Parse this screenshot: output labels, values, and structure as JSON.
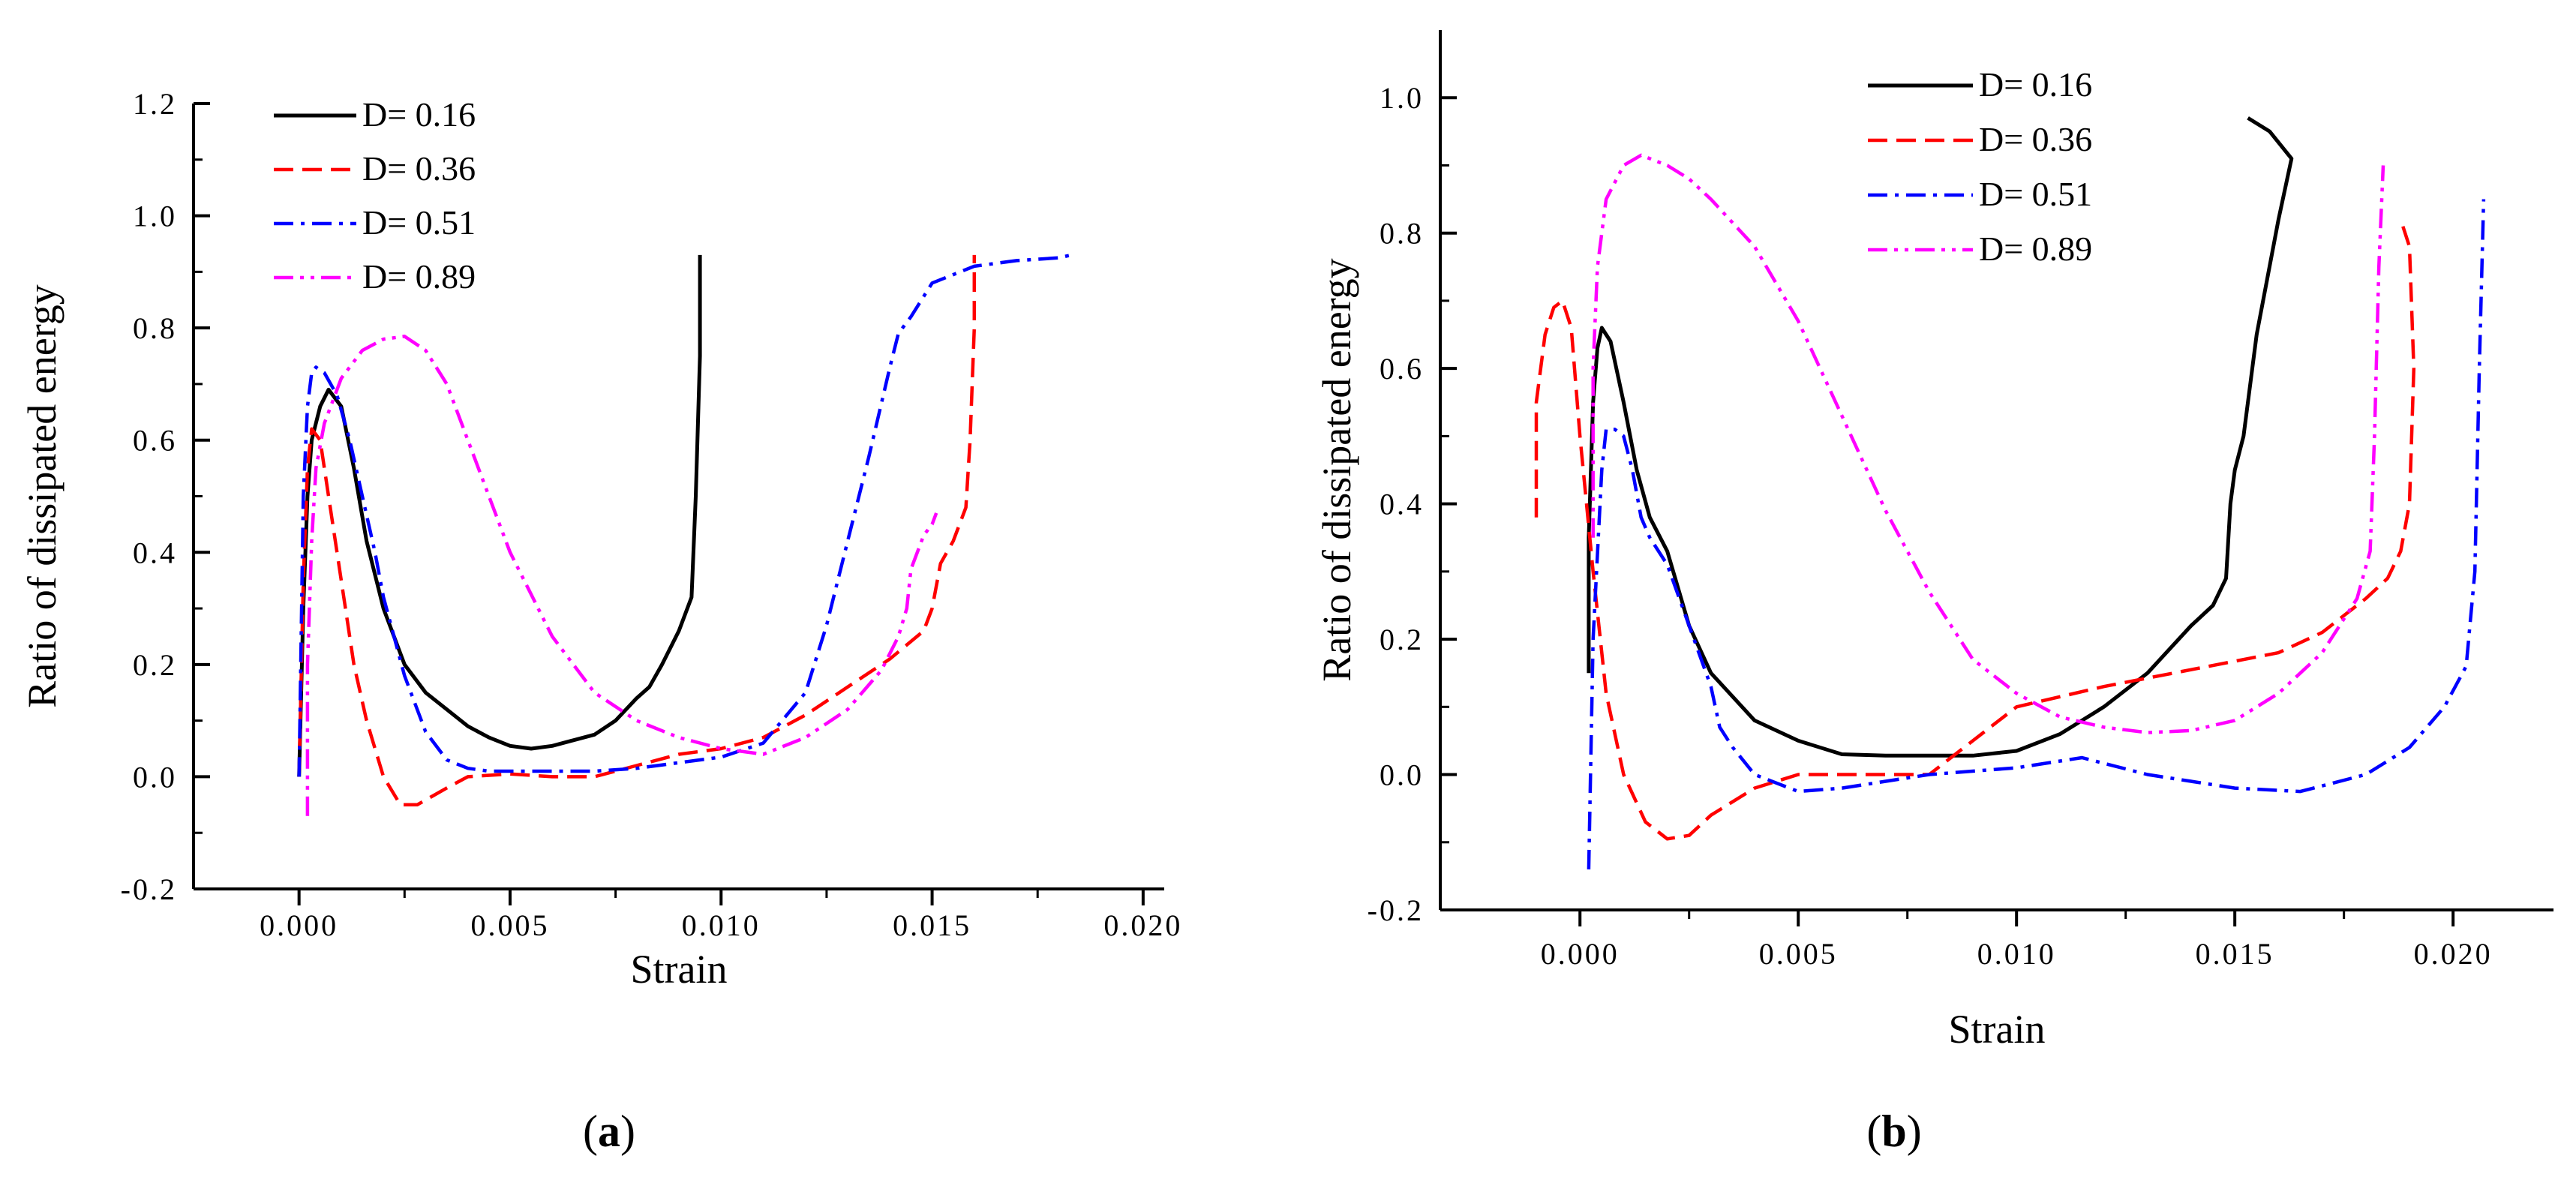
{
  "chart_data": [
    {
      "type": "line",
      "panel_label": "a",
      "xlabel": "Strain",
      "ylabel": "Ratio of dissipated energy",
      "xlim": [
        -0.0025,
        0.0205
      ],
      "ylim": [
        -0.2,
        1.2
      ],
      "xticks": [
        0.0,
        0.005,
        0.01,
        0.015,
        0.02
      ],
      "xtick_labels": [
        "0.000",
        "0.005",
        "0.010",
        "0.015",
        "0.020"
      ],
      "yticks": [
        -0.2,
        0.0,
        0.2,
        0.4,
        0.6,
        0.8,
        1.0,
        1.2
      ],
      "ytick_labels": [
        "-0.2",
        "0.0",
        "0.2",
        "0.4",
        "0.6",
        "0.8",
        "1.0",
        "1.2"
      ],
      "grid": false,
      "legend_position": "top-left",
      "series": [
        {
          "name": "D= 0.16",
          "color": "#000000",
          "dash": "solid",
          "x": [
            0.0,
            0.0001,
            0.0002,
            0.0003,
            0.0005,
            0.0007,
            0.001,
            0.0013,
            0.0016,
            0.002,
            0.0025,
            0.003,
            0.0035,
            0.004,
            0.0045,
            0.005,
            0.0055,
            0.006,
            0.0065,
            0.007,
            0.0075,
            0.008,
            0.0083,
            0.0086,
            0.009,
            0.0093,
            0.0094,
            0.0095,
            0.0095
          ],
          "y": [
            0.0,
            0.3,
            0.5,
            0.6,
            0.66,
            0.69,
            0.66,
            0.55,
            0.42,
            0.3,
            0.2,
            0.15,
            0.12,
            0.09,
            0.07,
            0.055,
            0.05,
            0.055,
            0.065,
            0.075,
            0.1,
            0.14,
            0.16,
            0.2,
            0.26,
            0.32,
            0.5,
            0.75,
            0.93
          ]
        },
        {
          "name": "D= 0.36",
          "color": "#ff0000",
          "dash": "dashed",
          "x": [
            0.0,
            0.0001,
            0.0002,
            0.0003,
            0.0005,
            0.0007,
            0.001,
            0.0013,
            0.0016,
            0.002,
            0.0024,
            0.0028,
            0.0035,
            0.004,
            0.005,
            0.006,
            0.007,
            0.008,
            0.009,
            0.01,
            0.011,
            0.012,
            0.013,
            0.014,
            0.0148,
            0.015,
            0.0152,
            0.0155,
            0.0158,
            0.0159,
            0.016,
            0.016
          ],
          "y": [
            0.0,
            0.35,
            0.55,
            0.62,
            0.6,
            0.5,
            0.35,
            0.2,
            0.1,
            0.0,
            -0.05,
            -0.05,
            -0.02,
            0.0,
            0.005,
            0.0,
            0.0,
            0.02,
            0.04,
            0.05,
            0.07,
            0.11,
            0.16,
            0.21,
            0.26,
            0.3,
            0.38,
            0.42,
            0.48,
            0.6,
            0.8,
            0.93
          ]
        },
        {
          "name": "D= 0.51",
          "color": "#0000ff",
          "dash": "dashdot",
          "x": [
            0.0,
            0.0001,
            0.0002,
            0.0003,
            0.0004,
            0.0006,
            0.0009,
            0.0012,
            0.0015,
            0.0018,
            0.002,
            0.0025,
            0.003,
            0.0035,
            0.004,
            0.0045,
            0.005,
            0.006,
            0.007,
            0.008,
            0.009,
            0.01,
            0.011,
            0.012,
            0.0125,
            0.013,
            0.0135,
            0.014,
            0.0142,
            0.0145,
            0.015,
            0.016,
            0.017,
            0.018,
            0.0183
          ],
          "y": [
            0.0,
            0.5,
            0.66,
            0.72,
            0.73,
            0.72,
            0.68,
            0.6,
            0.5,
            0.4,
            0.32,
            0.18,
            0.08,
            0.03,
            0.015,
            0.01,
            0.01,
            0.01,
            0.01,
            0.015,
            0.025,
            0.035,
            0.06,
            0.15,
            0.27,
            0.42,
            0.57,
            0.73,
            0.79,
            0.82,
            0.88,
            0.91,
            0.92,
            0.925,
            0.93
          ]
        },
        {
          "name": "D= 0.89",
          "color": "#ff00ff",
          "dash": "dashdotdot",
          "x": [
            0.0002,
            0.0002,
            0.0003,
            0.0004,
            0.0006,
            0.001,
            0.0015,
            0.002,
            0.0025,
            0.003,
            0.0035,
            0.004,
            0.0045,
            0.005,
            0.006,
            0.007,
            0.008,
            0.009,
            0.01,
            0.011,
            0.012,
            0.013,
            0.0138,
            0.0142,
            0.0144,
            0.0145,
            0.0148,
            0.015,
            0.0151
          ],
          "y": [
            -0.07,
            0.2,
            0.42,
            0.55,
            0.63,
            0.71,
            0.76,
            0.78,
            0.785,
            0.76,
            0.7,
            0.6,
            0.5,
            0.4,
            0.25,
            0.15,
            0.1,
            0.07,
            0.05,
            0.04,
            0.07,
            0.12,
            0.19,
            0.25,
            0.3,
            0.37,
            0.43,
            0.45,
            0.47
          ]
        }
      ]
    },
    {
      "type": "line",
      "panel_label": "b",
      "xlabel": "Strain",
      "ylabel": "Ratio of dissipated energy",
      "xlim": [
        -0.0032,
        0.0223
      ],
      "ylim": [
        -0.2,
        1.1
      ],
      "xticks": [
        0.0,
        0.005,
        0.01,
        0.015,
        0.02
      ],
      "xtick_labels": [
        "0.000",
        "0.005",
        "0.010",
        "0.015",
        "0.020"
      ],
      "yticks": [
        -0.2,
        0.0,
        0.2,
        0.4,
        0.6,
        0.8,
        1.0
      ],
      "ytick_labels": [
        "-0.2",
        "0.0",
        "0.2",
        "0.4",
        "0.6",
        "0.8",
        "1.0"
      ],
      "grid": false,
      "legend_position": "top-center",
      "series": [
        {
          "name": "D= 0.16",
          "color": "#000000",
          "dash": "solid",
          "x": [
            0.0002,
            0.0002,
            0.0003,
            0.0004,
            0.0005,
            0.0007,
            0.001,
            0.0013,
            0.0016,
            0.002,
            0.0025,
            0.003,
            0.004,
            0.005,
            0.006,
            0.007,
            0.008,
            0.009,
            0.01,
            0.011,
            0.012,
            0.013,
            0.014,
            0.0145,
            0.0148,
            0.0149,
            0.015,
            0.0152,
            0.0155,
            0.016,
            0.0163,
            0.0158,
            0.0153
          ],
          "y": [
            0.15,
            0.35,
            0.55,
            0.63,
            0.66,
            0.64,
            0.55,
            0.45,
            0.38,
            0.33,
            0.22,
            0.15,
            0.08,
            0.05,
            0.03,
            0.028,
            0.028,
            0.028,
            0.035,
            0.06,
            0.1,
            0.15,
            0.22,
            0.25,
            0.29,
            0.4,
            0.45,
            0.5,
            0.65,
            0.82,
            0.91,
            0.95,
            0.97
          ]
        },
        {
          "name": "D= 0.36",
          "color": "#ff0000",
          "dash": "dashed",
          "x": [
            -0.001,
            -0.001,
            -0.0008,
            -0.0006,
            -0.0004,
            -0.0002,
            0.0,
            0.0003,
            0.0006,
            0.001,
            0.0015,
            0.002,
            0.0025,
            0.003,
            0.004,
            0.005,
            0.006,
            0.008,
            0.01,
            0.012,
            0.014,
            0.016,
            0.017,
            0.018,
            0.0185,
            0.0188,
            0.019,
            0.0191,
            0.019,
            0.0188
          ],
          "y": [
            0.38,
            0.55,
            0.65,
            0.69,
            0.7,
            0.66,
            0.5,
            0.3,
            0.12,
            0.0,
            -0.07,
            -0.095,
            -0.09,
            -0.06,
            -0.02,
            0.0,
            0.0,
            0.0,
            0.1,
            0.13,
            0.155,
            0.18,
            0.21,
            0.26,
            0.29,
            0.33,
            0.4,
            0.6,
            0.78,
            0.82
          ]
        },
        {
          "name": "D= 0.51",
          "color": "#0000ff",
          "dash": "dashdot",
          "x": [
            0.0002,
            0.0003,
            0.0005,
            0.0006,
            0.0008,
            0.001,
            0.0012,
            0.0014,
            0.0016,
            0.002,
            0.0025,
            0.003,
            0.0032,
            0.0035,
            0.004,
            0.005,
            0.006,
            0.008,
            0.01,
            0.0115,
            0.013,
            0.015,
            0.0165,
            0.018,
            0.019,
            0.0198,
            0.0203,
            0.0205,
            0.0206,
            0.0207
          ],
          "y": [
            -0.14,
            0.2,
            0.45,
            0.51,
            0.51,
            0.5,
            0.45,
            0.38,
            0.35,
            0.31,
            0.22,
            0.13,
            0.07,
            0.04,
            0.0,
            -0.025,
            -0.02,
            0.0,
            0.01,
            0.025,
            0.0,
            -0.02,
            -0.025,
            0.0,
            0.04,
            0.1,
            0.16,
            0.3,
            0.6,
            0.85
          ]
        },
        {
          "name": "D= 0.89",
          "color": "#ff00ff",
          "dash": "dashdotdot",
          "x": [
            0.0003,
            0.0003,
            0.0004,
            0.0006,
            0.001,
            0.0014,
            0.002,
            0.0025,
            0.003,
            0.004,
            0.005,
            0.006,
            0.007,
            0.008,
            0.009,
            0.01,
            0.011,
            0.012,
            0.013,
            0.014,
            0.015,
            0.016,
            0.017,
            0.0178,
            0.0181,
            0.0182,
            0.0183,
            0.0184
          ],
          "y": [
            0.35,
            0.6,
            0.75,
            0.85,
            0.9,
            0.915,
            0.9,
            0.88,
            0.85,
            0.78,
            0.67,
            0.53,
            0.39,
            0.27,
            0.17,
            0.12,
            0.085,
            0.07,
            0.062,
            0.065,
            0.08,
            0.12,
            0.18,
            0.26,
            0.33,
            0.5,
            0.75,
            0.9
          ]
        }
      ]
    }
  ]
}
